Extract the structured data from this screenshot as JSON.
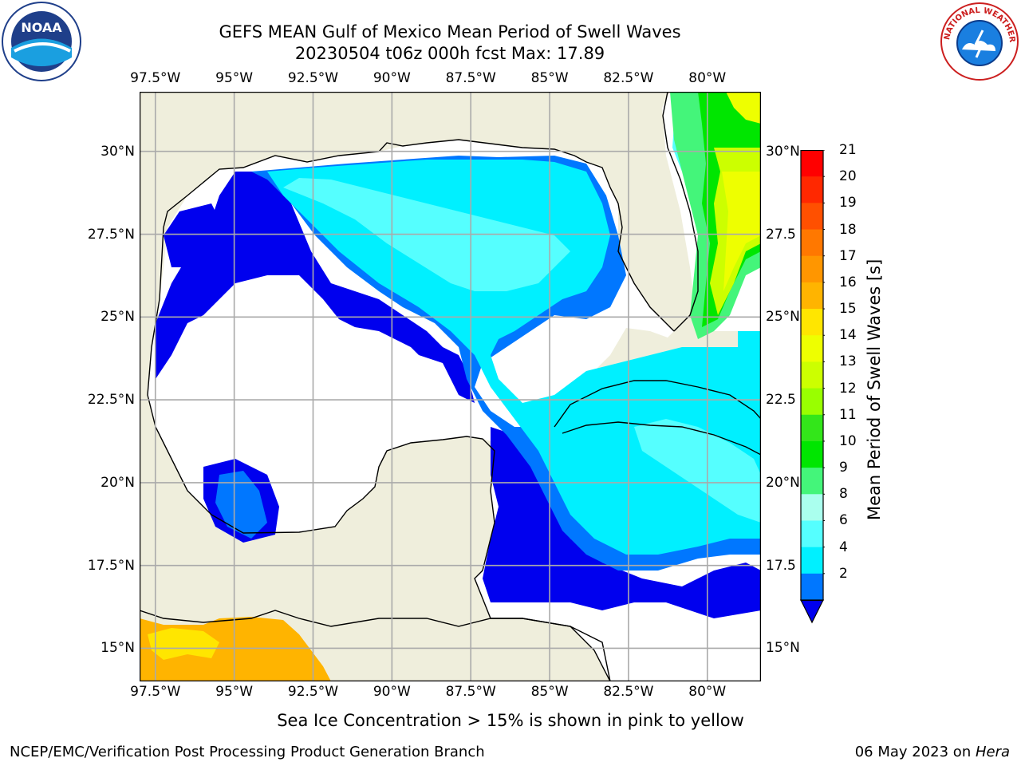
{
  "title": {
    "line1": "GEFS MEAN Gulf of Mexico Mean Period of Swell Waves",
    "line2": "20230504 t06z 000h fcst   Max: 17.89"
  },
  "logos": {
    "left_text": "NOAA",
    "right_text": "NATIONAL WEATHER SERVICE"
  },
  "axes": {
    "lon_labels": [
      "97.5°W",
      "95°W",
      "92.5°W",
      "90°W",
      "87.5°W",
      "85°W",
      "82.5°W",
      "80°W"
    ],
    "lat_labels": [
      "30°N",
      "27.5°N",
      "25°N",
      "22.5°N",
      "20°N",
      "17.5°N",
      "15°N"
    ],
    "lat_right_labels": [
      "30°N",
      "27.5",
      "25°N",
      "22.5",
      "20°N",
      "17.5",
      "15°N"
    ],
    "lon_range": [
      -98,
      -78.3
    ],
    "lat_range": [
      14,
      31.8
    ]
  },
  "colorbar": {
    "label": "Mean Period of Swell Waves [s]",
    "ticks": [
      "21",
      "20",
      "19",
      "18",
      "17",
      "16",
      "15",
      "14",
      "13",
      "12",
      "11",
      "10",
      "9",
      "8",
      "6",
      "4",
      "2"
    ],
    "colors": [
      "#ff0000",
      "#ff2800",
      "#ff5000",
      "#ff7800",
      "#ff9600",
      "#ffb400",
      "#ffe600",
      "#eeff00",
      "#ccff00",
      "#99ff00",
      "#33e61a",
      "#00e600",
      "#44f57a",
      "#aaffee",
      "#55ffff",
      "#00f0ff",
      "#0077ff"
    ],
    "extend_color": "#0000ee"
  },
  "colors": {
    "land": "#efeedc",
    "deep_blue": "#0000ee",
    "mid_blue": "#0077ff",
    "cyan": "#00f0ff",
    "light_cyan": "#55ffff",
    "orange": "#ffb400",
    "yellow": "#ffe600"
  },
  "subtitle": "Sea Ice Concentration > 15% is shown in pink to yellow",
  "footer": {
    "left": "NCEP/EMC/Verification Post Processing Product Generation Branch",
    "right_date": "06 May 2023 on ",
    "right_host": "Hera"
  }
}
